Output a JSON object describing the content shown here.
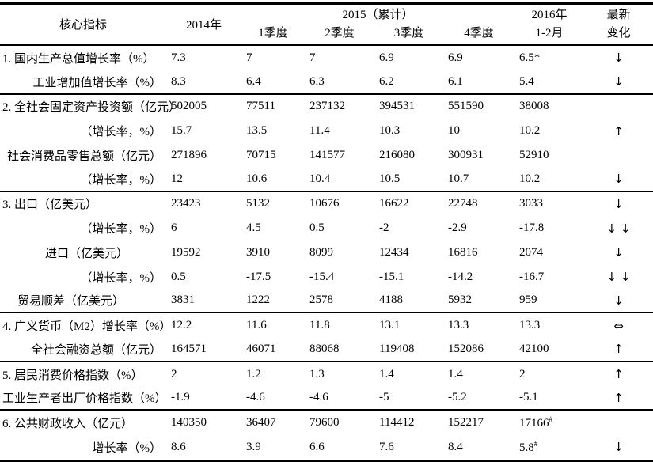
{
  "header": {
    "core_label": "核心指标",
    "col_2014": "2014年",
    "group_2015": "2015（累计）",
    "quarters": [
      "1季度",
      "2季度",
      "3季度",
      "4季度"
    ],
    "col_2016_line1": "2016年",
    "col_2016_line2": "1-2月",
    "latest_line1": "最新",
    "latest_line2": "变化"
  },
  "colors": {
    "text": "#000000",
    "rule": "#000000",
    "background": "#ffffff"
  },
  "rows": [
    {
      "label": "1. 国内生产总值增长率（%）",
      "align": "left",
      "indent": 3,
      "values": [
        "7.3",
        "7",
        "7",
        "6.9",
        "6.9",
        "6.5*"
      ],
      "arrow": "↓",
      "section_end": false
    },
    {
      "label": "工业增加值增长率（%）",
      "align": "right",
      "indent": null,
      "values": [
        "8.3",
        "6.4",
        "6.3",
        "6.2",
        "6.1",
        "5.4"
      ],
      "arrow": "↓",
      "section_end": true
    },
    {
      "label": "2. 全社会固定资产投资额（亿元）",
      "align": "left",
      "indent": 3,
      "values": [
        "502005",
        "77511",
        "237132",
        "394531",
        "551590",
        "38008"
      ],
      "arrow": "",
      "section_end": false
    },
    {
      "label": "（增长率，%）",
      "align": "right",
      "indent": null,
      "values": [
        "15.7",
        "13.5",
        "11.4",
        "10.3",
        "10",
        "10.2"
      ],
      "arrow": "↑",
      "section_end": false
    },
    {
      "label": "社会消费品零售总额（亿元）",
      "align": "right",
      "indent": null,
      "values": [
        "271896",
        "70715",
        "141577",
        "216080",
        "300931",
        "52910"
      ],
      "arrow": "",
      "section_end": false
    },
    {
      "label": "（增长率，%）",
      "align": "right",
      "indent": null,
      "values": [
        "12",
        "10.6",
        "10.4",
        "10.5",
        "10.7",
        "10.2"
      ],
      "arrow": "↓",
      "section_end": true
    },
    {
      "label": "3. 出口（亿美元）",
      "align": "left",
      "indent": 3,
      "values": [
        "23423",
        "5132",
        "10676",
        "16622",
        "22748",
        "3033"
      ],
      "arrow": "↓",
      "section_end": false
    },
    {
      "label": "（增长率，%）",
      "align": "right",
      "indent": null,
      "values": [
        "6",
        "4.5",
        "0.5",
        "-2",
        "-2.9",
        "-17.8"
      ],
      "arrow": "↓ ↓",
      "section_end": false
    },
    {
      "label": "进口（亿美元）",
      "align": "left",
      "indent": 57,
      "values": [
        "19592",
        "3910",
        "8099",
        "12434",
        "16816",
        "2074"
      ],
      "arrow": "↓",
      "section_end": false
    },
    {
      "label": "（增长率，%）",
      "align": "right",
      "indent": null,
      "values": [
        "0.5",
        "-17.5",
        "-15.4",
        "-15.1",
        "-14.2",
        "-16.7"
      ],
      "arrow": "↓ ↓",
      "section_end": false
    },
    {
      "label": "贸易顺差（亿美元）",
      "align": "left",
      "indent": 22,
      "values": [
        "3831",
        "1222",
        "2578",
        "4188",
        "5932",
        "959"
      ],
      "arrow": "↓",
      "section_end": true
    },
    {
      "label": "4. 广义货币（M2）增长率（%）",
      "align": "left",
      "indent": 3,
      "values": [
        "12.2",
        "11.6",
        "11.8",
        "13.1",
        "13.3",
        "13.3"
      ],
      "arrow": "⇔",
      "section_end": false
    },
    {
      "label": "全社会融资总额（亿元）",
      "align": "right",
      "indent": null,
      "values": [
        "164571",
        "46071",
        "88068",
        "119408",
        "152086",
        "42100"
      ],
      "arrow": "↑",
      "section_end": true
    },
    {
      "label": "5. 居民消费价格指数（%）",
      "align": "left",
      "indent": 3,
      "values": [
        "2",
        "1.2",
        "1.3",
        "1.4",
        "1.4",
        "2"
      ],
      "arrow": "↑",
      "section_end": false
    },
    {
      "label": "工业生产者出厂价格指数（%）",
      "align": "right",
      "indent": null,
      "values": [
        "-1.9",
        "-4.6",
        "-4.6",
        "-5",
        "-5.2",
        "-5.1"
      ],
      "arrow": "↑",
      "section_end": true
    },
    {
      "label": "6. 公共财政收入（亿元）",
      "align": "left",
      "indent": 3,
      "values": [
        "140350",
        "36407",
        "79600",
        "114412",
        "152217",
        "17166^#"
      ],
      "arrow": "",
      "section_end": false
    },
    {
      "label": "增长率（%）",
      "align": "right",
      "indent": null,
      "values": [
        "8.6",
        "3.9",
        "6.6",
        "7.6",
        "8.4",
        "5.8^#"
      ],
      "arrow": "↓",
      "section_end": false
    }
  ]
}
